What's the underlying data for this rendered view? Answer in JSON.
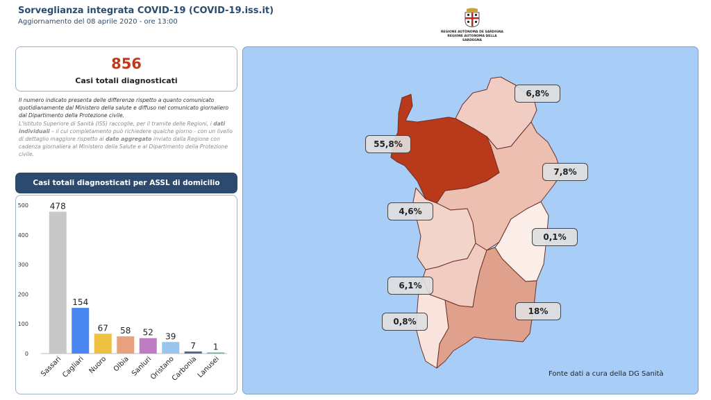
{
  "header": {
    "title": "Sorveglianza integrata COVID-19 (COVID-19.iss.it)",
    "update": "Aggiornamento del 08 aprile 2020 - ore 13:00"
  },
  "logo": {
    "line1": "REGIONE AUTÒNOMA DE SARDIGNA",
    "line2": "REGIONE AUTONOMA DELLA SARDEGNA"
  },
  "summary": {
    "value": "856",
    "label": "Casi totali diagnosticati"
  },
  "note": {
    "paragraph1": "Il numero indicato presenta delle differenze rispetto a quanto comunicato quotidianamente dal Ministero della salute e diffuso nel comunicato giornaliero dal Dipartimento della Protezione civile.",
    "p2_a": "L'Istituto Superiore di Sanità (ISS) raccoglie, per il tramite delle Regioni, i ",
    "p2_b": "dati individuali",
    "p2_c": " – il cui completamento può richiedere qualche giorno - con un livello di dettaglio maggiore rispetto al ",
    "p2_d": "dato aggregato",
    "p2_e": " inviato dalla Regione con cadenza giornaliera al Ministero della Salute e al Dipartimento della Protezione civile."
  },
  "chart_banner": "Casi totali diagnosticati per ASSL di domicilio",
  "chart_data": {
    "type": "bar",
    "categories": [
      "Sassari",
      "Cagliari",
      "Nuoro",
      "Olbia",
      "Sanluri",
      "Oristano",
      "Carbonia",
      "Lanusei"
    ],
    "values": [
      478,
      154,
      67,
      58,
      52,
      39,
      7,
      1
    ],
    "colors": [
      "#c8c8c8",
      "#4a86f0",
      "#eec142",
      "#e9a07d",
      "#c07cc3",
      "#98c5ee",
      "#52699e",
      "#49b5a5"
    ],
    "ylim": [
      0,
      500
    ],
    "yticks": [
      0,
      100,
      200,
      300,
      400,
      500
    ],
    "title": "",
    "xlabel": "",
    "ylabel": ""
  },
  "map": {
    "regions": [
      {
        "name": "Olbia",
        "label": "6,8%",
        "color": "#f0ccc2"
      },
      {
        "name": "Sassari",
        "label": "55,8%",
        "color": "#b83a1b"
      },
      {
        "name": "Nuoro",
        "label": "7,8%",
        "color": "#ecbfb1"
      },
      {
        "name": "Oristano",
        "label": "4,6%",
        "color": "#f2d4ca"
      },
      {
        "name": "Lanusei",
        "label": "0,1%",
        "color": "#fbede8"
      },
      {
        "name": "Sanluri",
        "label": "6,1%",
        "color": "#f0ccc2"
      },
      {
        "name": "Cagliari",
        "label": "18%",
        "color": "#dfa18c"
      },
      {
        "name": "Carbonia",
        "label": "0,8%",
        "color": "#f8e4dd"
      }
    ],
    "water_color": "#a8cdf7"
  },
  "source": "Fonte dati a cura della DG Sanità"
}
